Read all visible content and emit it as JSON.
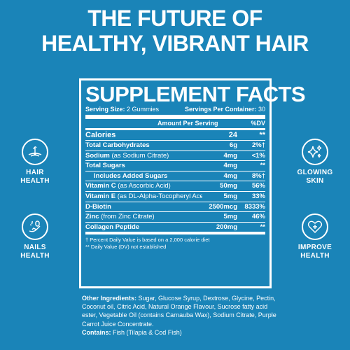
{
  "headline": {
    "line1": "THE FUTURE OF",
    "line2": "HEALTHY, VIBRANT HAIR"
  },
  "facts": {
    "title": "SUPPLEMENT FACTS",
    "serving_size_label": "Serving Size:",
    "serving_size_value": "2 Gummies",
    "servings_per_container_label": "Servings Per Container:",
    "servings_per_container_value": "30",
    "col_amount": "Amount Per Serving",
    "col_dv": "%DV",
    "rows": [
      {
        "name": "Calories",
        "sub": "",
        "amount": "24",
        "dv": "**"
      },
      {
        "name": "Total Carbohydrates",
        "sub": "",
        "amount": "6g",
        "dv": "2%†"
      },
      {
        "name": "Sodium",
        "sub": "(as Sodium Citrate)",
        "amount": "4mg",
        "dv": "<1%"
      },
      {
        "name": "Total Sugars",
        "sub": "",
        "amount": "4mg",
        "dv": "**"
      },
      {
        "name": "Includes Added Sugars",
        "sub": "",
        "amount": "4mg",
        "dv": "8%†"
      },
      {
        "name": "Vitamin C",
        "sub": "(as Ascorbic Acid)",
        "amount": "50mg",
        "dv": "56%"
      },
      {
        "name": "Vitamin E",
        "sub": "(as DL-Alpha-Tocopheryl Acetate)",
        "amount": "5mg",
        "dv": "33%"
      },
      {
        "name": "D-Biotin",
        "sub": "",
        "amount": "2500mcg",
        "dv": "8333%"
      },
      {
        "name": "Zinc",
        "sub": "(from Zinc Citrate)",
        "amount": "5mg",
        "dv": "46%"
      },
      {
        "name": "Collagen Peptide",
        "sub": "",
        "amount": "200mg",
        "dv": "**"
      }
    ],
    "footnote1": "† Percent Daily Value is based on a 2,000 calorie diet",
    "footnote2": "** Daily Value (DV) not established"
  },
  "ingredients": {
    "other_label": "Other Ingredients:",
    "other_text": "Sugar, Glucose Syrup, Dextrose, Glycine, Pectin, Coconut oil, Citric Acid, Natural Orange Flavour, Sucrose fatty acid ester, Vegetable Oil (contains Carnauba Wax), Sodium Citrate, Purple Carrot Juice Concentrate.",
    "contains_label": "Contains:",
    "contains_text": "Fish (Tilapia & Cod Fish)"
  },
  "badges": {
    "hair_line1": "HAIR",
    "hair_line2": "HEALTH",
    "hair_icon": "hair-follicle-icon",
    "nails_line1": "NAILS",
    "nails_line2": "HEALTH",
    "nails_icon": "nail-hand-icon",
    "skin_line1": "GLOWING",
    "skin_line2": "SKIN",
    "skin_icon": "sparkles-icon",
    "health_line1": "IMPROVE",
    "health_line2": "HEALTH",
    "health_icon": "heart-plus-icon"
  },
  "colors": {
    "background": "#1a84b8",
    "foreground": "#ffffff"
  }
}
